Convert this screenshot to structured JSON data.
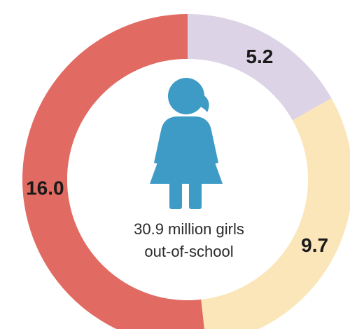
{
  "chart_data": {
    "type": "pie",
    "style": "donut",
    "center_label_lines": [
      "30.9 million girls",
      "out-of-school"
    ],
    "center_icon": "girl-icon",
    "slices": [
      {
        "value": 5.2,
        "label": "5.2",
        "color": "#ddd3e6"
      },
      {
        "value": 9.7,
        "label": "9.7",
        "color": "#fbe6b9"
      },
      {
        "value": 16.0,
        "label": "16.0",
        "color": "#e16b62"
      }
    ],
    "icon_color": "#3d9bc6"
  }
}
